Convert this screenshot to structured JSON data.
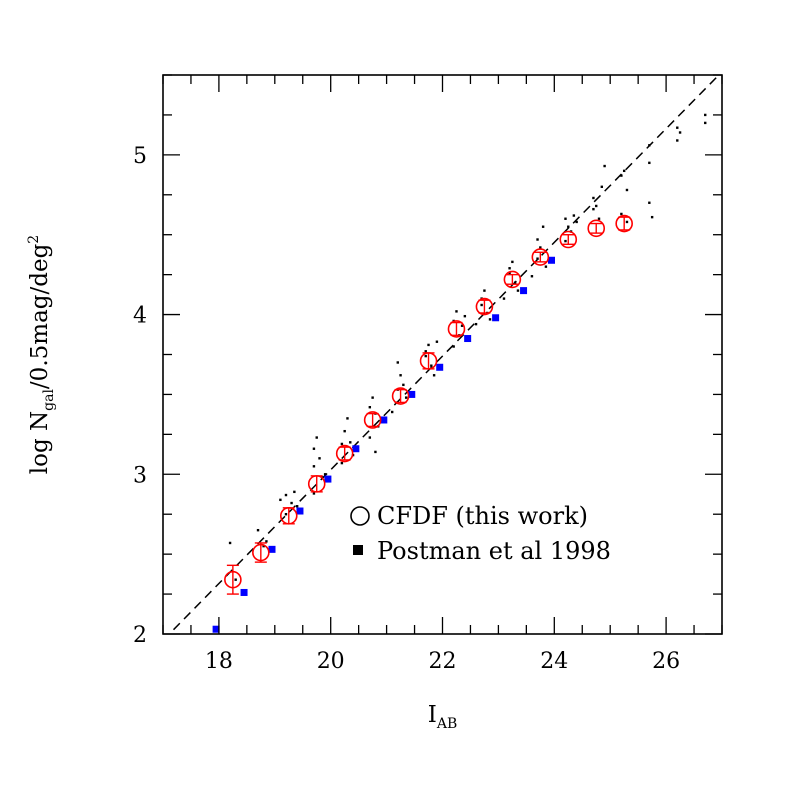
{
  "chart_data": {
    "type": "scatter",
    "title": "",
    "xlabel": {
      "main": "I",
      "sub": "AB"
    },
    "ylabel": {
      "pre": "log N",
      "sub": "gal",
      "post": "/0.5mag/deg",
      "sup": "2"
    },
    "xlim": [
      17,
      27
    ],
    "ylim": [
      2,
      5.5
    ],
    "x_ticks": [
      18,
      20,
      22,
      24,
      26
    ],
    "y_ticks": [
      2,
      3,
      4,
      5
    ],
    "x_tick_labels": [
      "18",
      "20",
      "22",
      "24",
      "26"
    ],
    "y_tick_labels": [
      "2",
      "3",
      "4",
      "5"
    ],
    "x_minor_step": 0.5,
    "y_minor_step": 0.25,
    "grid": false,
    "legend_position": "bottom-right",
    "colors": {
      "cfdf": "#ff0000",
      "postman": "#0000ff",
      "fields": "#000000",
      "fit": "#000000"
    },
    "reference_line": {
      "style": "dashed",
      "x": [
        17,
        27
      ],
      "y": [
        1.96,
        5.52
      ]
    },
    "series": [
      {
        "name": "CFDF (this work)",
        "marker": "open-circle",
        "x": [
          18.25,
          18.75,
          19.25,
          19.75,
          20.25,
          20.75,
          21.25,
          21.75,
          22.25,
          22.75,
          23.25,
          23.75,
          24.25,
          24.75,
          25.25
        ],
        "y": [
          2.34,
          2.51,
          2.74,
          2.94,
          3.13,
          3.34,
          3.49,
          3.71,
          3.91,
          4.05,
          4.22,
          4.36,
          4.47,
          4.54,
          4.57
        ],
        "yerr": [
          0.09,
          0.06,
          0.05,
          0.05,
          0.04,
          0.04,
          0.04,
          0.05,
          0.04,
          0.04,
          0.03,
          0.03,
          0.03,
          0.03,
          0.04
        ]
      },
      {
        "name": "Postman et al 1998",
        "marker": "filled-square",
        "x": [
          17.95,
          18.45,
          18.95,
          19.45,
          19.95,
          20.45,
          20.95,
          21.45,
          21.95,
          22.45,
          22.95,
          23.45,
          23.95
        ],
        "y": [
          2.03,
          2.26,
          2.53,
          2.77,
          2.97,
          3.16,
          3.34,
          3.5,
          3.67,
          3.85,
          3.98,
          4.15,
          4.34
        ]
      },
      {
        "marker": "dot",
        "x": [
          18.2,
          18.3,
          18.7,
          18.8,
          18.85,
          19.1,
          19.2,
          19.2,
          19.3,
          19.35,
          19.4,
          19.7,
          19.7,
          19.75,
          19.8,
          19.85,
          19.9,
          19.7,
          20.2,
          20.25,
          20.3,
          20.35,
          20.4,
          20.2,
          20.7,
          20.75,
          20.8,
          20.85,
          20.7,
          20.8,
          21.2,
          21.2,
          21.25,
          21.3,
          21.35,
          21.2,
          21.1,
          21.7,
          21.75,
          21.8,
          21.85,
          21.7,
          21.9,
          22.2,
          22.25,
          22.3,
          22.35,
          22.2,
          22.4,
          22.7,
          22.75,
          22.8,
          22.85,
          22.7,
          22.6,
          23.2,
          23.25,
          23.3,
          23.35,
          23.2,
          23.1,
          23.7,
          23.75,
          23.8,
          23.85,
          23.7,
          23.6,
          24.2,
          24.25,
          24.3,
          24.35,
          24.2,
          24.4,
          24.7,
          24.75,
          24.8,
          24.85,
          24.7,
          24.9,
          25.2,
          25.25,
          25.3,
          25.2,
          25.3,
          25.7,
          25.7,
          25.75,
          25.7,
          26.2,
          26.2,
          26.25,
          26.7,
          26.7
        ],
        "y": [
          2.57,
          2.34,
          2.65,
          2.55,
          2.58,
          2.84,
          2.87,
          2.75,
          2.82,
          2.89,
          2.8,
          3.05,
          3.16,
          3.23,
          3.1,
          2.98,
          3.0,
          2.88,
          3.19,
          3.27,
          3.35,
          3.2,
          3.12,
          3.07,
          3.42,
          3.48,
          3.38,
          3.3,
          3.23,
          3.14,
          3.53,
          3.45,
          3.62,
          3.56,
          3.48,
          3.7,
          3.39,
          3.77,
          3.81,
          3.68,
          3.62,
          3.74,
          3.83,
          3.96,
          4.02,
          3.87,
          3.93,
          3.8,
          3.99,
          4.1,
          4.15,
          4.01,
          3.97,
          4.06,
          3.94,
          4.29,
          4.33,
          4.2,
          4.15,
          4.26,
          4.1,
          4.47,
          4.42,
          4.55,
          4.3,
          4.35,
          4.24,
          4.6,
          4.55,
          4.52,
          4.62,
          4.46,
          4.58,
          4.73,
          4.68,
          4.6,
          4.8,
          4.66,
          4.93,
          4.87,
          4.9,
          4.78,
          4.63,
          4.58,
          4.95,
          5.06,
          4.61,
          4.7,
          5.17,
          5.09,
          5.14,
          5.2,
          5.25
        ]
      }
    ],
    "legend": [
      {
        "label": "CFDF (this work)",
        "marker": "open-circle"
      },
      {
        "label": "Postman et al 1998",
        "marker": "filled-square"
      }
    ]
  }
}
